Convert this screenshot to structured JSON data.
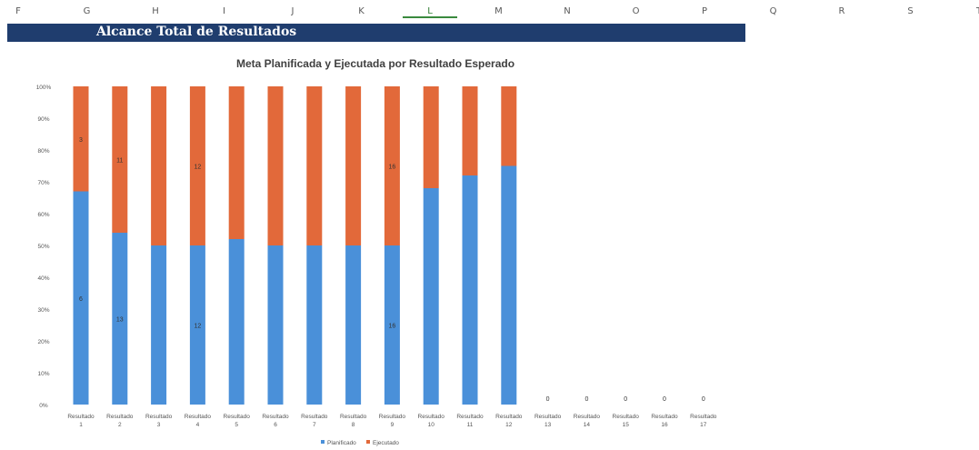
{
  "spreadsheet": {
    "columns": [
      "F",
      "G",
      "H",
      "I",
      "J",
      "K",
      "L",
      "M",
      "N",
      "O",
      "P",
      "Q",
      "R",
      "S",
      "T"
    ],
    "selected_column": "L"
  },
  "banner": {
    "title": "Alcance Total de Resultados",
    "background": "#1f3d6e"
  },
  "chart_data": {
    "type": "bar",
    "stacked": "percent",
    "title": "Meta Planificada y Ejecutada por Resultado Esperado",
    "xlabel": "",
    "ylabel": "",
    "y_ticks": [
      "0%",
      "10%",
      "20%",
      "30%",
      "40%",
      "50%",
      "60%",
      "70%",
      "80%",
      "90%",
      "100%"
    ],
    "ylim": [
      0,
      100
    ],
    "grid": false,
    "legend_position": "bottom",
    "categories": [
      "Resultado 1",
      "Resultado 2",
      "Resultado 3",
      "Resultado 4",
      "Resultado 5",
      "Resultado 6",
      "Resultado 7",
      "Resultado 8",
      "Resultado 9",
      "Resultado 10",
      "Resultado 11",
      "Resultado 12",
      "Resultado 13",
      "Resultado 14",
      "Resultado 15",
      "Resultado 16",
      "Resultado 17"
    ],
    "series": [
      {
        "name": "Planificado",
        "color": "#4a90d9",
        "percent": [
          67,
          54,
          50,
          50,
          52,
          50,
          50,
          50,
          50,
          68,
          72,
          75,
          0,
          0,
          0,
          0,
          0
        ],
        "labels": [
          "6",
          "13",
          "",
          "12",
          "",
          "",
          "",
          "",
          "16",
          "",
          "",
          "",
          "0",
          "0",
          "0",
          "0",
          "0"
        ]
      },
      {
        "name": "Ejecutado",
        "color": "#e2693a",
        "percent": [
          33,
          46,
          50,
          50,
          48,
          50,
          50,
          50,
          50,
          32,
          28,
          25,
          0,
          0,
          0,
          0,
          0
        ],
        "labels": [
          "3",
          "11",
          "",
          "12",
          "",
          "",
          "",
          "",
          "16",
          "",
          "",
          "",
          "",
          "",
          "",
          "",
          ""
        ]
      }
    ]
  }
}
